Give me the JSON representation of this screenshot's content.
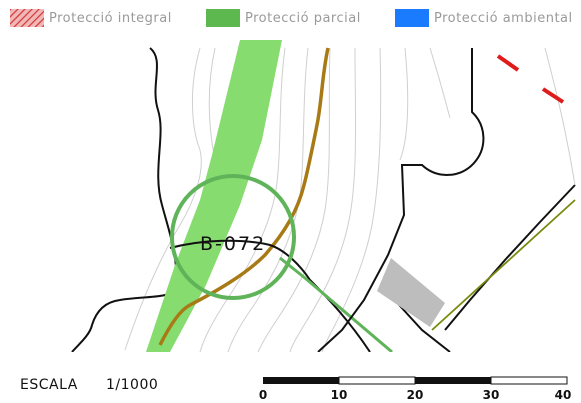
{
  "legend": {
    "items": [
      {
        "label": "Protecció integral",
        "color": "#d23a3a",
        "pattern": "hatched"
      },
      {
        "label": "Protecció parcial",
        "color": "#5db84f",
        "pattern": "solid"
      },
      {
        "label": "Protecció ambiental",
        "color": "#1a7bff",
        "pattern": "solid"
      }
    ]
  },
  "map": {
    "road_label": "B-072",
    "colors": {
      "green_band": "#86dc6e",
      "protection_circle": "#5fb45a",
      "brown_path": "#a87a16",
      "olive_line": "#7a8a10",
      "grey_block": "#bdbdbd",
      "red_marks": "#e01b1b",
      "contours": "#c8c8c8"
    }
  },
  "scale": {
    "label": "ESCALA",
    "ratio": "1/1000",
    "ticks": [
      "0",
      "10",
      "20",
      "30",
      "40"
    ]
  }
}
